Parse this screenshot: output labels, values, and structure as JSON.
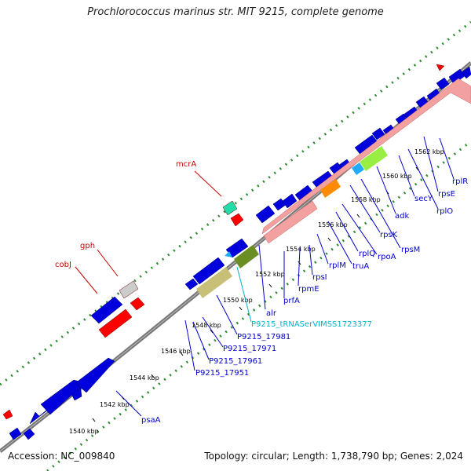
{
  "title": "Prochlorococcus marinus str. MIT 9215, complete genome",
  "footer": {
    "accession": "Accession: NC_009840",
    "summary": "Topology: circular; Length: 1,738,790 bp; Genes: 2,024"
  },
  "colors": {
    "backbone": "#777777",
    "dots": "#2e8b2e",
    "cds": "#0000dd",
    "cds_rev": "#ff0000",
    "label_blue": "#0000cc",
    "label_red": "#cc0000",
    "label_cyan": "#00b3cc",
    "rrna_pink": "#f2a0a0",
    "orange": "#ff8c00",
    "lightgreen": "#99ee44",
    "skyblue": "#22aaff",
    "olive": "#6b8e23",
    "khaki": "#c8c078",
    "teal": "#22ddaa",
    "grey": "#cccccc"
  },
  "ticks": [
    {
      "label": "1540 kbp"
    },
    {
      "label": "1542 kbp"
    },
    {
      "label": "1544 kbp"
    },
    {
      "label": "1546 kbp"
    },
    {
      "label": "1548 kbp"
    },
    {
      "label": "1550 kbp"
    },
    {
      "label": "1552 kbp"
    },
    {
      "label": "1554 kbp"
    },
    {
      "label": "1556 kbp"
    },
    {
      "label": "1558 kbp"
    },
    {
      "label": "1560 kbp"
    },
    {
      "label": "1562 kbp"
    }
  ],
  "genes": [
    {
      "label": "psaA"
    },
    {
      "label": "P9215_17951"
    },
    {
      "label": "P9215_17961"
    },
    {
      "label": "P9215_17971"
    },
    {
      "label": "P9215_17981"
    },
    {
      "label": "P9215_tRNASerVIMSS1723377"
    },
    {
      "label": "alr"
    },
    {
      "label": "prfA"
    },
    {
      "label": "rpmE"
    },
    {
      "label": "rpsI"
    },
    {
      "label": "rplM"
    },
    {
      "label": "truA"
    },
    {
      "label": "rplQ"
    },
    {
      "label": "rpoA"
    },
    {
      "label": "rpsM"
    },
    {
      "label": "rpsK"
    },
    {
      "label": "adk"
    },
    {
      "label": "secY"
    },
    {
      "label": "rplO"
    },
    {
      "label": "rpsE"
    },
    {
      "label": "rplR"
    },
    {
      "label": "mcrA"
    },
    {
      "label": "gph"
    },
    {
      "label": "cobJ"
    }
  ]
}
